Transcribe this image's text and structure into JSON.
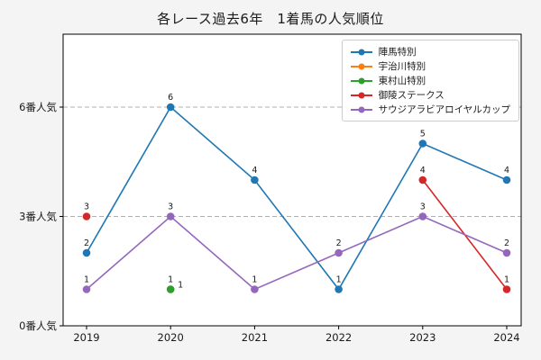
{
  "figure": {
    "background_color": "#f4f4f4",
    "plot_background_color": "#ffffff"
  },
  "chart_data": {
    "type": "line",
    "title": "各レース過去6年　1着馬の人気順位",
    "x": [
      "2019",
      "2020",
      "2021",
      "2022",
      "2023",
      "2024"
    ],
    "ylim": [
      0,
      8
    ],
    "yticks": [
      {
        "value": 0,
        "label": "0番人気"
      },
      {
        "value": 3,
        "label": "3番人気"
      },
      {
        "value": 6,
        "label": "6番人気"
      }
    ],
    "grid": "horizontal-dashed",
    "legend_position": "upper-right",
    "series": [
      {
        "name": "陣馬特別",
        "color": "#1f77b4",
        "values": [
          2,
          6,
          4,
          1,
          5,
          4
        ]
      },
      {
        "name": "宇治川特別",
        "color": "#ff7f0e",
        "values": [
          null,
          1,
          null,
          null,
          null,
          null
        ]
      },
      {
        "name": "東村山特別",
        "color": "#2ca02c",
        "values": [
          null,
          1,
          null,
          null,
          null,
          null
        ],
        "label_offset": [
          11,
          -2
        ]
      },
      {
        "name": "御陵ステークス",
        "color": "#d62728",
        "values": [
          3,
          null,
          null,
          null,
          4,
          1
        ]
      },
      {
        "name": "サウジアラビアロイヤルカップ",
        "color": "#9467bd",
        "values": [
          1,
          3,
          1,
          2,
          3,
          2
        ]
      }
    ]
  }
}
